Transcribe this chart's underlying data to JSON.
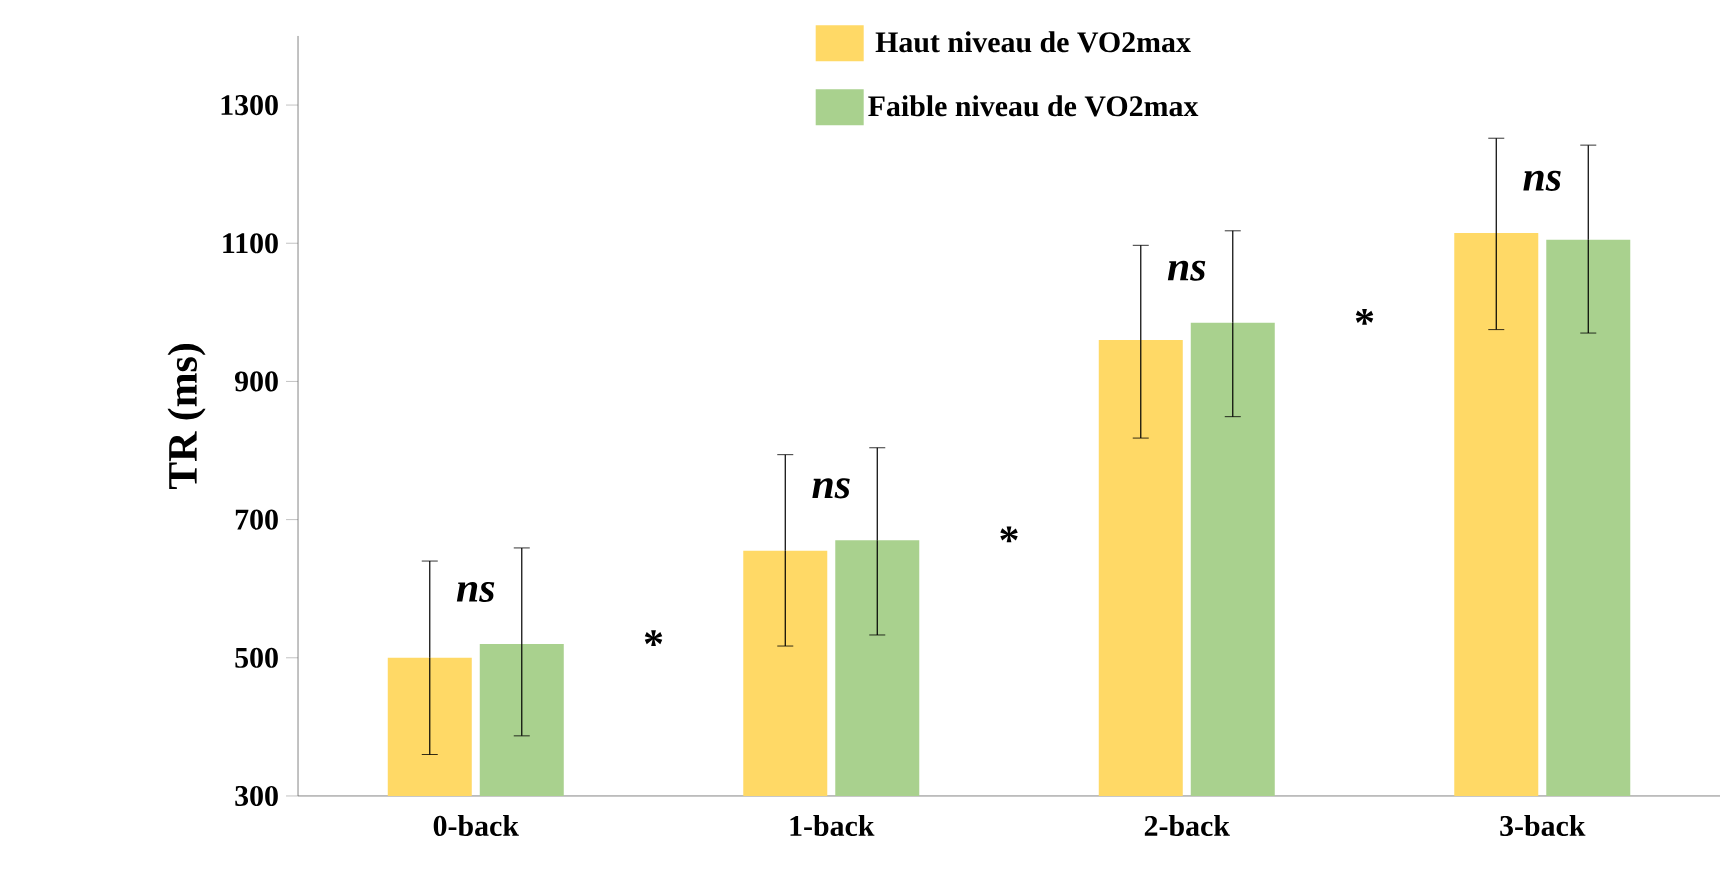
{
  "chart_data": {
    "type": "bar",
    "ylabel": "TR (ms)",
    "categories": [
      "0-back",
      "1-back",
      "2-back",
      "3-back"
    ],
    "series": [
      {
        "name": "Haut niveau de VO2max",
        "color": "#ffd966",
        "values": [
          500,
          655,
          960,
          1115
        ],
        "errors": [
          [
            360,
            640
          ],
          [
            517,
            794
          ],
          [
            818,
            1097
          ],
          [
            975,
            1252
          ]
        ]
      },
      {
        "name": "Faible niveau de VO2max",
        "color": "#a9d18e",
        "values": [
          520,
          670,
          985,
          1105
        ],
        "errors": [
          [
            387,
            659
          ],
          [
            533,
            804
          ],
          [
            849,
            1118
          ],
          [
            970,
            1242
          ]
        ]
      }
    ],
    "ylim": [
      300,
      1400
    ],
    "yticks": [
      300,
      500,
      700,
      900,
      1100,
      1300
    ],
    "grid": false,
    "legend": "top",
    "annotations": [
      "*ns*",
      "*ns*",
      "*ns*",
      "*ns*",
      "*",
      "*",
      "*"
    ]
  }
}
